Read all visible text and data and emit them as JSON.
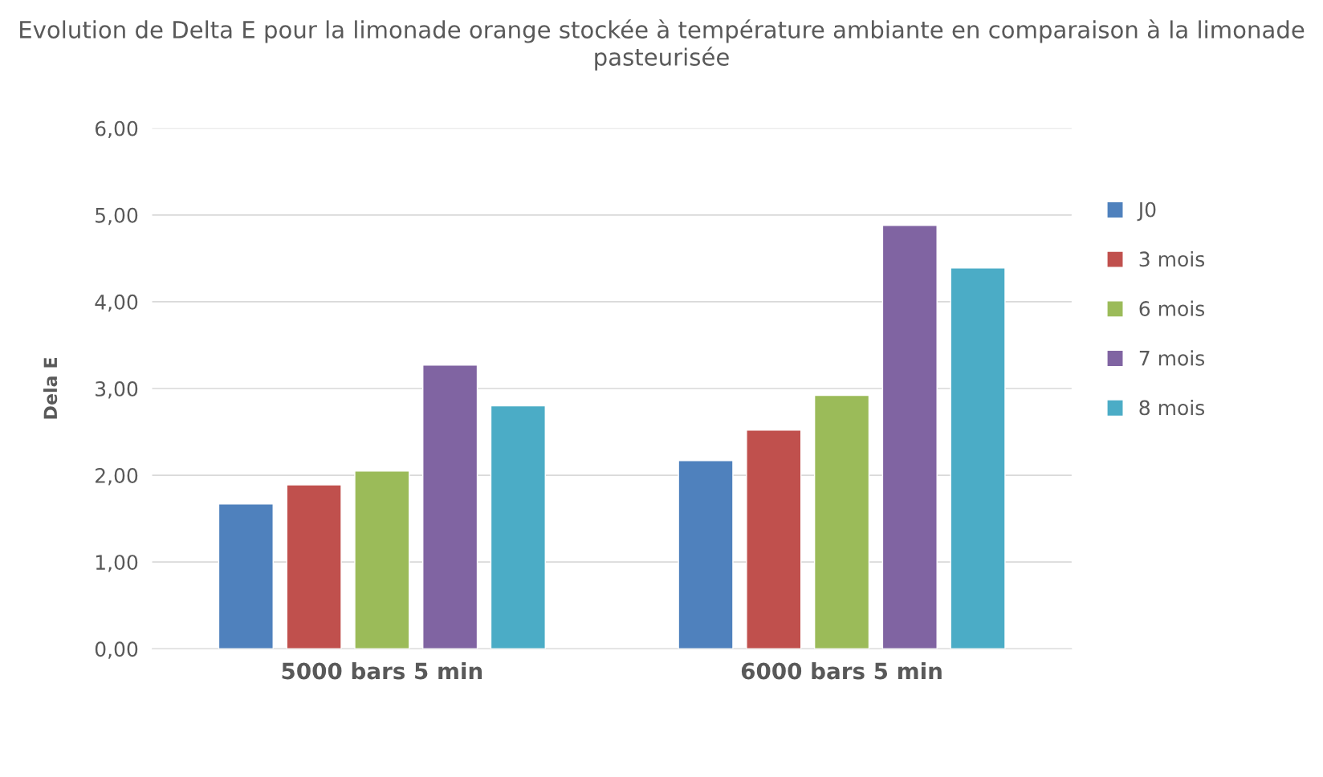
{
  "chart_data": {
    "type": "bar",
    "title": "Evolution de Delta E pour la limonade orange stockée à température ambiante en comparaison à la limonade pasteurisée",
    "ylabel": "Dela E",
    "categories": [
      "5000 bars 5 min",
      "6000 bars 5 min"
    ],
    "series": [
      {
        "name": "J0",
        "color": "#4f81bd",
        "values": [
          1.67,
          2.17
        ]
      },
      {
        "name": "3 mois",
        "color": "#c0504d",
        "values": [
          1.89,
          2.52
        ]
      },
      {
        "name": "6 mois",
        "color": "#9bbb59",
        "values": [
          2.05,
          2.92
        ]
      },
      {
        "name": "7 mois",
        "color": "#8064a2",
        "values": [
          3.27,
          4.88
        ]
      },
      {
        "name": "8 mois",
        "color": "#4bacc6",
        "values": [
          2.8,
          4.39
        ]
      }
    ],
    "ylim": [
      0,
      6
    ],
    "yticks": [
      {
        "value": 0,
        "label": "0,00"
      },
      {
        "value": 1,
        "label": "1,00"
      },
      {
        "value": 2,
        "label": "2,00"
      },
      {
        "value": 3,
        "label": "3,00"
      },
      {
        "value": 4,
        "label": "4,00"
      },
      {
        "value": 5,
        "label": "5,00"
      },
      {
        "value": 6,
        "label": "6,00"
      }
    ],
    "grid": "y",
    "legend": "right"
  }
}
